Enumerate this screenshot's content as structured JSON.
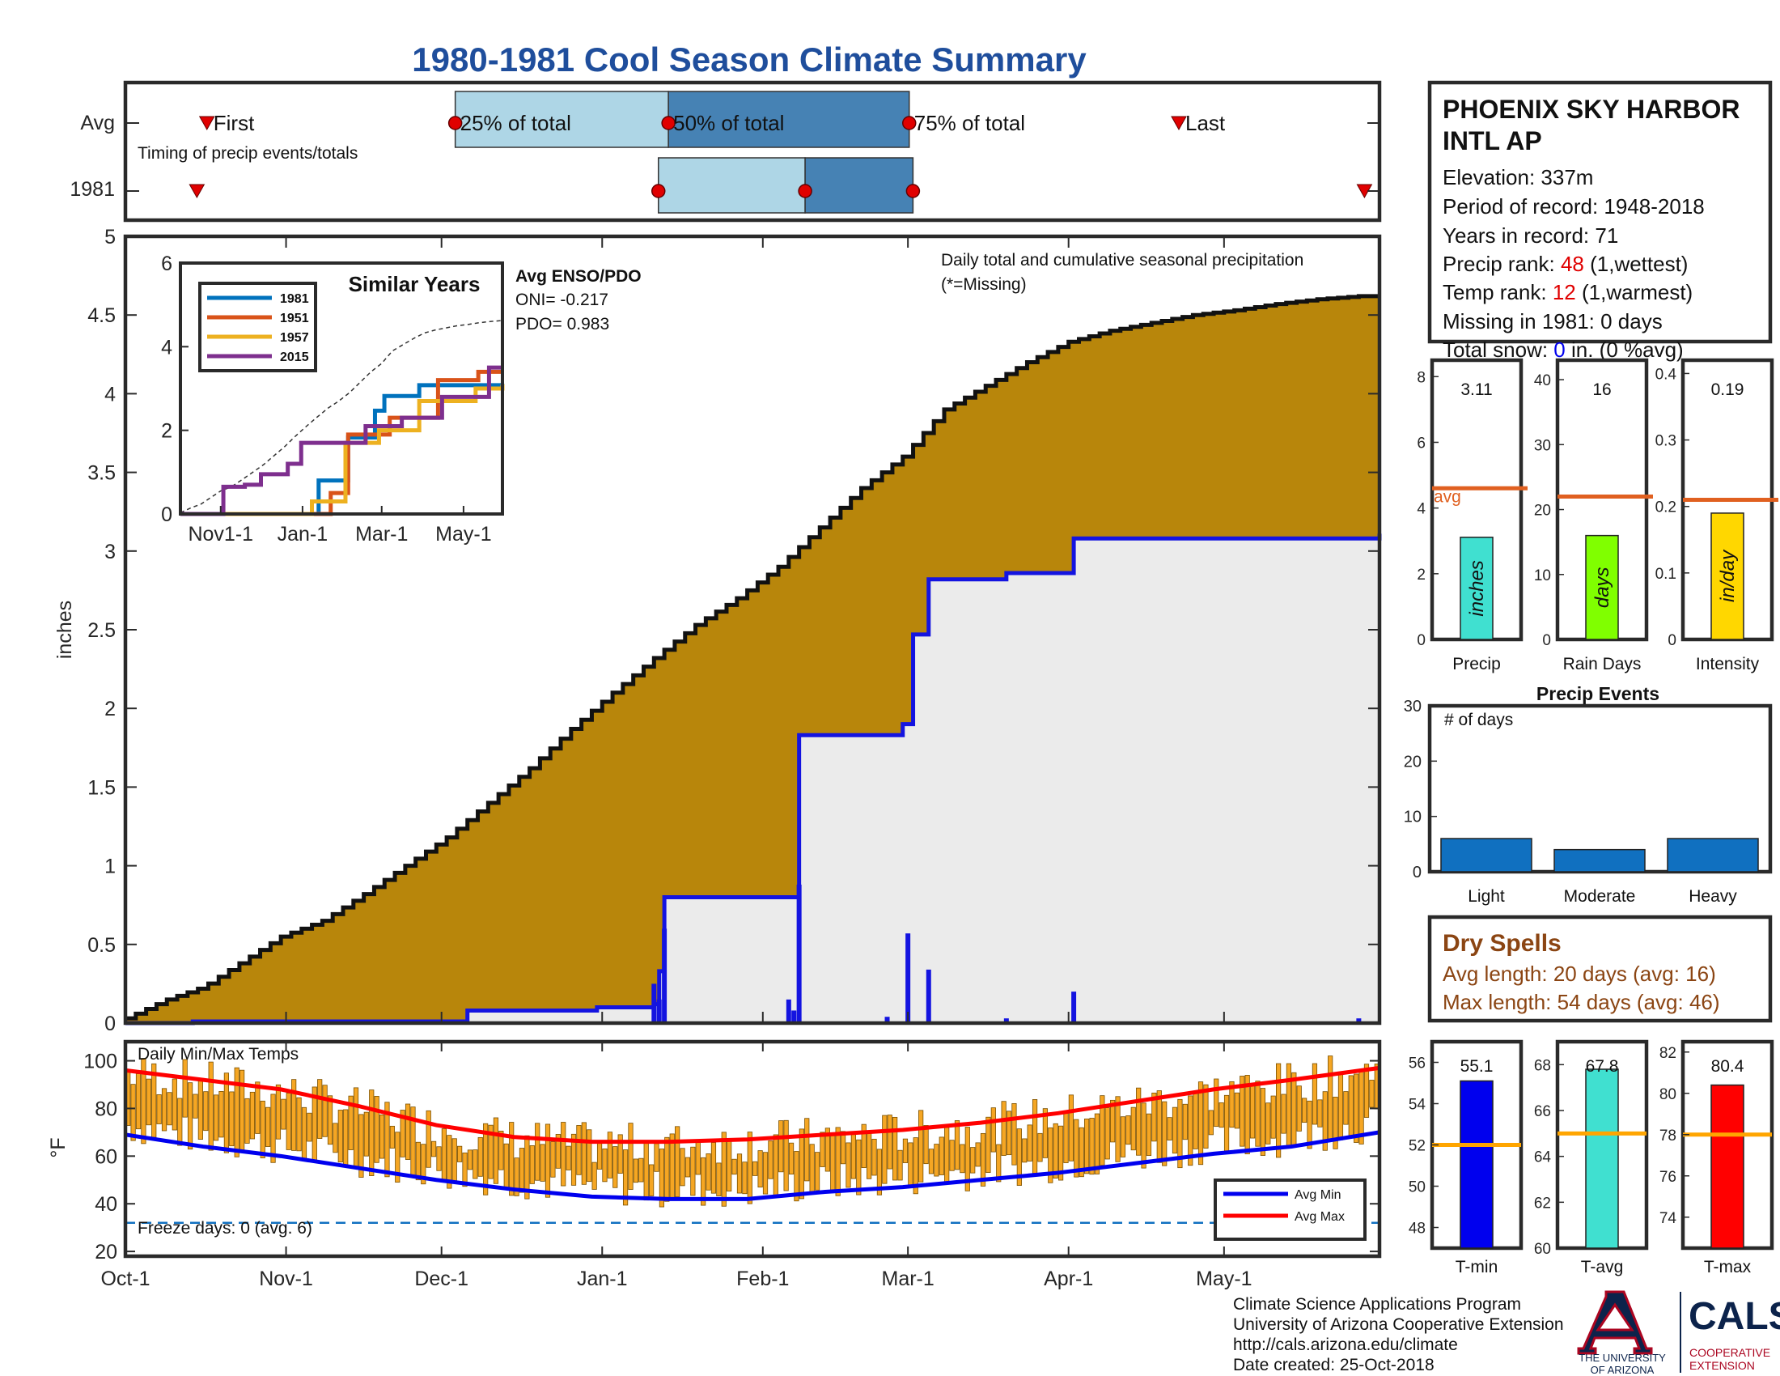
{
  "title": "1980-1981 Cool Season Climate Summary",
  "timing": {
    "rows": [
      "Avg",
      "1981"
    ],
    "caption": "Timing of precip events/totals",
    "labels": {
      "first": "First",
      "p25": "25% of total",
      "p50": "50% of total",
      "p75": "75% of total",
      "last": "Last"
    },
    "avg": {
      "first": 0.065,
      "p25": 0.263,
      "p50": 0.433,
      "p75": 0.625,
      "last": 0.84
    },
    "y1981": {
      "first": 0.057,
      "p25": 0.425,
      "p50": 0.542,
      "p75": 0.628,
      "last": 0.988
    }
  },
  "station": {
    "name_line1": "PHOENIX SKY HARBOR",
    "name_line2": "INTL AP",
    "elevation": "Elevation: 337m",
    "period": "Period of record: 1948-2018",
    "years": "Years in record: 71",
    "precip_rank_label": "Precip rank: ",
    "precip_rank": "48",
    "precip_rank_suffix": " (1,wettest)",
    "temp_rank_label": "Temp rank: ",
    "temp_rank": "12",
    "temp_rank_suffix": " (1,warmest)",
    "missing": "Missing in 1981: 0 days",
    "snow_label": "Total snow: ",
    "snow_value": "0",
    "snow_suffix": " in. (0 %avg)"
  },
  "precip_chart": {
    "caption": "Daily total and cumulative seasonal precipitation",
    "missing_note": "(*=Missing)",
    "ylabel": "inches",
    "y_ticks": [
      "0",
      "0.5",
      "1",
      "1.5",
      "2",
      "2.5",
      "3",
      "3.5",
      "4",
      "4.5",
      "5"
    ]
  },
  "x_ticks": [
    "Oct-1",
    "Nov-1",
    "Dec-1",
    "Jan-1",
    "Feb-1",
    "Mar-1",
    "Apr-1",
    "May-1"
  ],
  "inset": {
    "title": "Similar Years",
    "legend": [
      "1981",
      "1951",
      "1957",
      "2015"
    ],
    "y_ticks": [
      "0",
      "2",
      "4",
      "6"
    ],
    "x_ticks": [
      "Nov1-1",
      "Jan-1",
      "Mar-1",
      "May-1"
    ]
  },
  "enso": {
    "title": "Avg ENSO/PDO",
    "oni": "ONI= -0.217",
    "pdo": "PDO= 0.983"
  },
  "mini_bars": [
    {
      "label": "Precip",
      "value_text": "3.11",
      "bar_text": "inches",
      "ticks": [
        "0",
        "2",
        "4",
        "6",
        "8"
      ],
      "avg_label": "avg"
    },
    {
      "label": "Rain Days",
      "value_text": "16",
      "bar_text": "days",
      "ticks": [
        "0",
        "10",
        "20",
        "30",
        "40"
      ]
    },
    {
      "label": "Intensity",
      "value_text": "0.19",
      "bar_text": "in/day",
      "ticks": [
        "0",
        "0.1",
        "0.2",
        "0.3",
        "0.4"
      ]
    }
  ],
  "precip_events": {
    "title": "Precip Events",
    "ylabel": "# of days",
    "ticks": [
      "0",
      "10",
      "20",
      "30"
    ],
    "categories": [
      "Light",
      "Moderate",
      "Heavy"
    ]
  },
  "dry_spells": {
    "title": "Dry Spells",
    "avg": "Avg length: 20 days (avg: 16)",
    "max": "Max length: 54 days (avg: 46)"
  },
  "temp_chart": {
    "title": "Daily Min/Max Temps",
    "ylabel": "°F",
    "y_ticks": [
      "20",
      "40",
      "60",
      "80",
      "100"
    ],
    "freeze": "Freeze days: 0 (avg. 6)",
    "legend": [
      "Avg Min",
      "Avg Max"
    ]
  },
  "temp_bars": [
    {
      "label": "T-min",
      "value_text": "55.1",
      "ticks": [
        "48",
        "50",
        "52",
        "54",
        "56"
      ]
    },
    {
      "label": "T-avg",
      "value_text": "67.8",
      "ticks": [
        "60",
        "62",
        "64",
        "66",
        "68"
      ]
    },
    {
      "label": "T-max",
      "value_text": "80.4",
      "ticks": [
        "74",
        "76",
        "78",
        "80",
        "82"
      ]
    }
  ],
  "footer": {
    "line1": "Climate Science Applications Program",
    "line2": "University of Arizona Cooperative Extension",
    "line3": "http://cals.arizona.edu/climate",
    "line4": " Date created: 25-Oct-2018"
  },
  "logos": {
    "ua_line1": "THE UNIVERSITY",
    "ua_line2": "OF ARIZONA",
    "cals": "CALS",
    "cals_sub1": "COOPERATIVE",
    "cals_sub2": "EXTENSION"
  },
  "colors": {
    "title": "#1f4e9c",
    "cumAvg": "#b8860b",
    "cumYear": "#1414e0",
    "fill": "#ebebeb",
    "box25": "#aed6e6",
    "box50": "#4682b4",
    "marker": "#e00000",
    "avgLine": "#e06020",
    "precipBar": "#40e0d0",
    "daysBar": "#80ff00",
    "intBar": "#ffd700",
    "events": "#1070c0",
    "tempBar": "#f5a623",
    "tmin": "#0000ee",
    "tavg": "#40e0d0",
    "tmax": "#ff0000",
    "tAvgLine": "#ffa500",
    "s1981": "#0072bd",
    "s1951": "#d95319",
    "s1957": "#edb120",
    "s2015": "#7e2f8e",
    "brown": "#8b4513"
  },
  "chart_data": [
    {
      "type": "area",
      "title": "Daily total and cumulative seasonal precipitation",
      "ylabel": "inches",
      "ylim": [
        0,
        5
      ],
      "x_ticks": [
        "Oct-1",
        "Nov-1",
        "Dec-1",
        "Jan-1",
        "Feb-1",
        "Mar-1",
        "Apr-1",
        "May-1"
      ],
      "series": [
        {
          "name": "average cumulative",
          "x_day": [
            0,
            8,
            15,
            22,
            30,
            38,
            46,
            54,
            62,
            70,
            78,
            86,
            94,
            102,
            110,
            118,
            126,
            134,
            142,
            150,
            158,
            166,
            174,
            182,
            190,
            198,
            206,
            214,
            222,
            230,
            238,
            242
          ],
          "values": [
            0.03,
            0.15,
            0.23,
            0.38,
            0.55,
            0.65,
            0.82,
            1.0,
            1.18,
            1.4,
            1.62,
            1.87,
            2.1,
            2.32,
            2.53,
            2.7,
            2.9,
            3.15,
            3.4,
            3.6,
            3.9,
            4.05,
            4.2,
            4.33,
            4.4,
            4.45,
            4.5,
            4.53,
            4.57,
            4.6,
            4.62,
            4.62
          ]
        },
        {
          "name": "1981 cumulative",
          "steps": [
            [
              0,
              0
            ],
            [
              13,
              0.01
            ],
            [
              66,
              0.08
            ],
            [
              91,
              0.1
            ],
            [
              102,
              0.12
            ],
            [
              103,
              0.33
            ],
            [
              104,
              0.8
            ],
            [
              129,
              0.8
            ],
            [
              130,
              1.83
            ],
            [
              147,
              1.83
            ],
            [
              150,
              1.9
            ],
            [
              152,
              2.47
            ],
            [
              155,
              2.82
            ],
            [
              170,
              2.86
            ],
            [
              183,
              3.08
            ],
            [
              238,
              3.08
            ],
            [
              242,
              3.11
            ]
          ]
        },
        {
          "name": "1981 daily",
          "days": [
            102,
            103,
            104,
            128,
            129,
            130,
            147,
            151,
            155,
            170,
            183,
            238
          ],
          "values": [
            0.25,
            0.15,
            0.6,
            0.15,
            0.08,
            0.88,
            0.04,
            0.57,
            0.34,
            0.03,
            0.2,
            0.03
          ]
        }
      ]
    },
    {
      "type": "line",
      "title": "Similar Years",
      "ylim": [
        0,
        6
      ],
      "x_ticks": [
        "Nov1-1",
        "Jan-1",
        "Mar-1",
        "May-1"
      ],
      "series": [
        {
          "name": "1981",
          "steps": [
            [
              0,
              0
            ],
            [
              100,
              0
            ],
            [
              103,
              0.8
            ],
            [
              120,
              0.8
            ],
            [
              125,
              1.83
            ],
            [
              142,
              1.83
            ],
            [
              145,
              2.47
            ],
            [
              152,
              2.82
            ],
            [
              168,
              2.82
            ],
            [
              178,
              3.08
            ],
            [
              240,
              3.11
            ]
          ]
        },
        {
          "name": "1951",
          "steps": [
            [
              0,
              0
            ],
            [
              108,
              0
            ],
            [
              112,
              0.5
            ],
            [
              120,
              0.5
            ],
            [
              125,
              1.9
            ],
            [
              150,
              1.9
            ],
            [
              156,
              2.3
            ],
            [
              185,
              2.3
            ],
            [
              192,
              3.2
            ],
            [
              215,
              3.2
            ],
            [
              222,
              3.4
            ],
            [
              240,
              3.4
            ]
          ]
        },
        {
          "name": "1957",
          "steps": [
            [
              0,
              0
            ],
            [
              95,
              0
            ],
            [
              98,
              0.3
            ],
            [
              118,
              0.3
            ],
            [
              123,
              1.7
            ],
            [
              140,
              1.7
            ],
            [
              148,
              2.0
            ],
            [
              170,
              2.0
            ],
            [
              178,
              2.7
            ],
            [
              210,
              2.7
            ],
            [
              220,
              3.0
            ],
            [
              240,
              3.1
            ]
          ]
        },
        {
          "name": "2015",
          "steps": [
            [
              0,
              0
            ],
            [
              28,
              0
            ],
            [
              32,
              0.65
            ],
            [
              48,
              0.7
            ],
            [
              60,
              0.95
            ],
            [
              80,
              1.2
            ],
            [
              90,
              1.7
            ],
            [
              132,
              1.7
            ],
            [
              138,
              2.1
            ],
            [
              158,
              2.1
            ],
            [
              165,
              2.3
            ],
            [
              190,
              2.3
            ],
            [
              195,
              2.8
            ],
            [
              225,
              2.8
            ],
            [
              230,
              3.5
            ],
            [
              240,
              3.5
            ]
          ]
        }
      ]
    },
    {
      "type": "bar",
      "title": "Precip Events",
      "ylabel": "# of days",
      "categories": [
        "Light",
        "Moderate",
        "Heavy"
      ],
      "values": [
        6,
        4,
        6
      ],
      "ylim": [
        0,
        30
      ]
    },
    {
      "type": "bar",
      "categories": [
        "Precip",
        "Rain Days",
        "Intensity"
      ],
      "series": [
        {
          "name": "1981",
          "values": [
            3.11,
            16,
            0.19
          ]
        },
        {
          "name": "avg",
          "values": [
            4.6,
            22,
            0.21
          ]
        }
      ],
      "ylims": [
        [
          0,
          8.5
        ],
        [
          0,
          43
        ],
        [
          0,
          0.42
        ]
      ]
    },
    {
      "type": "bar",
      "title": "Daily Min/Max Temps",
      "ylabel": "°F",
      "ylim": [
        18,
        108
      ],
      "avg_min": {
        "x_day": [
          0,
          15,
          30,
          45,
          60,
          75,
          90,
          105,
          120,
          135,
          150,
          165,
          180,
          195,
          210,
          225,
          242
        ],
        "values": [
          69,
          64,
          60,
          55,
          50,
          46,
          43,
          42,
          42,
          45,
          47,
          50,
          53,
          57,
          61,
          64,
          70
        ]
      },
      "avg_max": {
        "x_day": [
          0,
          15,
          30,
          45,
          60,
          75,
          90,
          105,
          120,
          135,
          150,
          165,
          180,
          195,
          210,
          225,
          242
        ],
        "values": [
          96,
          92,
          88,
          81,
          73,
          68,
          66,
          66,
          67,
          69,
          71,
          74,
          78,
          83,
          88,
          92,
          97
        ]
      }
    },
    {
      "type": "bar",
      "categories": [
        "T-min",
        "T-avg",
        "T-max"
      ],
      "series": [
        {
          "name": "1981",
          "values": [
            55.1,
            67.8,
            80.4
          ]
        },
        {
          "name": "avg",
          "values": [
            52,
            65,
            78
          ]
        }
      ],
      "ylims": [
        [
          47,
          57
        ],
        [
          60,
          69
        ],
        [
          72.5,
          82.5
        ]
      ]
    }
  ]
}
